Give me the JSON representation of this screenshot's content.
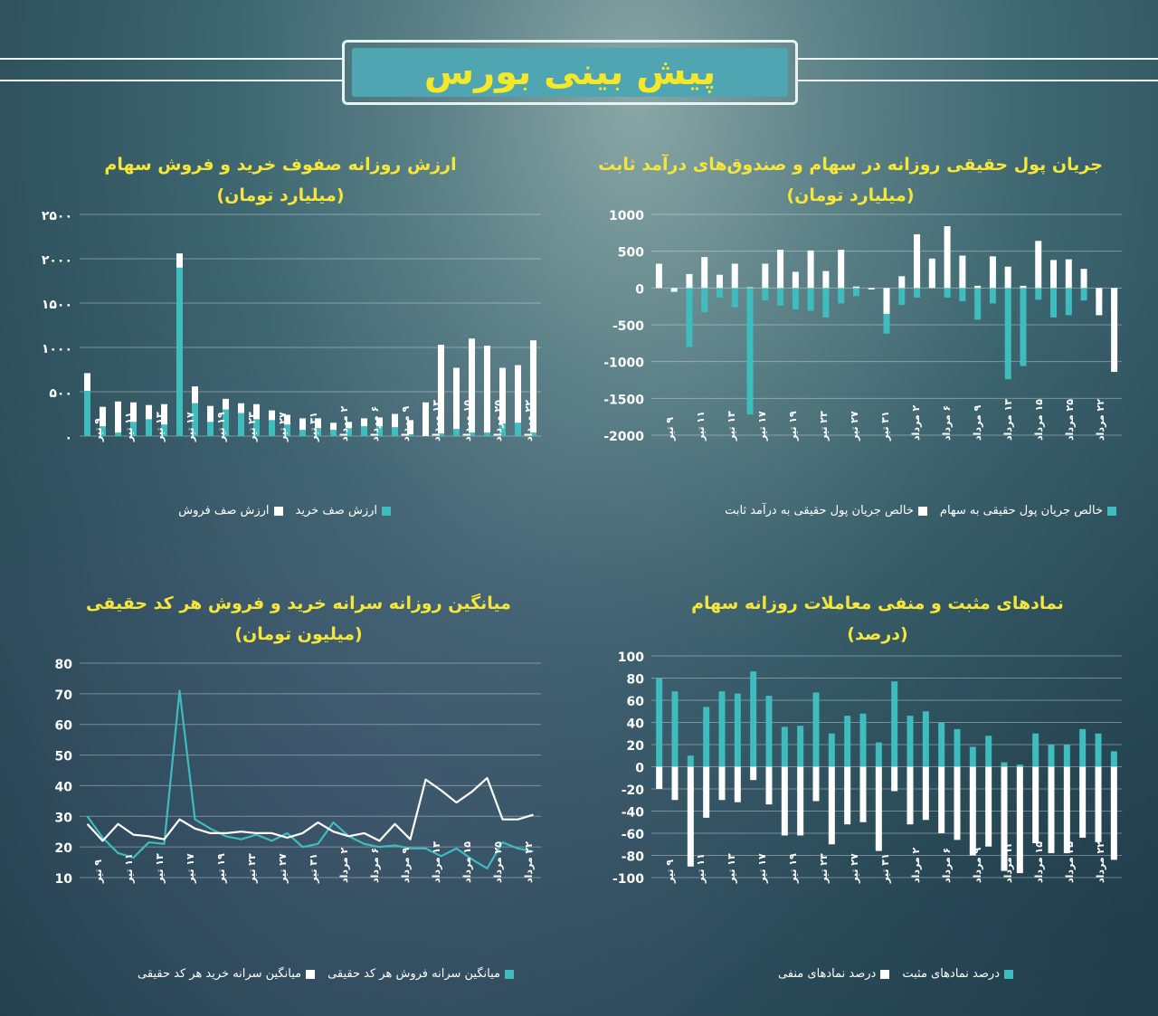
{
  "header": {
    "title": "پیش بینی بورس"
  },
  "colors": {
    "teal": "#3fbcbe",
    "white": "#ffffff",
    "yellow": "#f4e63a"
  },
  "dates": [
    "۹ تیر",
    "۱۱ تیر",
    "۱۳ تیر",
    "۱۷ تیر",
    "۱۹ تیر",
    "۲۳ تیر",
    "۲۷ تیر",
    "۳۱ تیر",
    "۲ مرداد",
    "۶ مرداد",
    "۹ مرداد",
    "۱۳ مرداد",
    "۱۵ مرداد",
    "۲۵ مرداد",
    "۲۲ مرداد"
  ],
  "chart_data": [
    {
      "id": "flow",
      "type": "bar",
      "title": "جریان پول حقیقی روزانه در سهام و صندوق‌های درآمد ثابت",
      "subtitle": "(میلیارد تومان)",
      "yticks": [
        "1000",
        "500",
        "0",
        "-500",
        "-1000",
        "-1500",
        "-2000"
      ],
      "ylim": [
        -2000,
        1000
      ],
      "series": [
        {
          "name": "خالص جریان پول حقیقی به سهام",
          "color": "#3fbcbe",
          "values": [
            110,
            -60,
            -800,
            -330,
            -130,
            -260,
            -1720,
            -170,
            -240,
            -290,
            -310,
            -400,
            -210,
            -110,
            -20,
            -620,
            -230,
            -130,
            60,
            -130,
            -180,
            -430,
            -210,
            -1240,
            -1060,
            -160,
            -400,
            -370,
            -170,
            -120,
            -330
          ]
        },
        {
          "name": "خالص جریان پول حقیقی به درآمد ثابت",
          "color": "#ffffff",
          "values": [
            330,
            -50,
            190,
            420,
            180,
            330,
            10,
            330,
            520,
            220,
            510,
            230,
            520,
            20,
            -20,
            -350,
            160,
            730,
            400,
            840,
            440,
            30,
            430,
            290,
            30,
            640,
            380,
            390,
            260,
            -370,
            -1140
          ]
        }
      ]
    },
    {
      "id": "queues",
      "type": "bar",
      "title": "ارزش روزانه صفوف خرید و فروش سهام",
      "subtitle": "(میلیارد تومان)",
      "yticks": [
        "۲۵۰۰",
        "۲۰۰۰",
        "۱۵۰۰",
        "۱۰۰۰",
        "۵۰۰",
        "۰"
      ],
      "ylim": [
        0,
        2500
      ],
      "series": [
        {
          "name": "ارزش صف خرید",
          "color": "#3fbcbe",
          "values": [
            510,
            110,
            40,
            160,
            190,
            130,
            1900,
            370,
            160,
            300,
            260,
            190,
            180,
            130,
            70,
            90,
            70,
            90,
            110,
            110,
            100,
            20,
            0,
            30,
            80,
            40,
            40,
            140,
            150,
            40
          ]
        },
        {
          "name": "ارزش صف فروش",
          "color": "#ffffff",
          "values": [
            200,
            220,
            350,
            220,
            160,
            230,
            160,
            190,
            180,
            120,
            110,
            170,
            110,
            110,
            130,
            110,
            80,
            70,
            90,
            100,
            150,
            160,
            380,
            1000,
            690,
            1060,
            980,
            630,
            650,
            1040
          ]
        }
      ]
    },
    {
      "id": "symbols",
      "type": "bar",
      "title": "نمادهای مثبت و منفی معاملات روزانه سهام",
      "subtitle": "(درصد)",
      "yticks": [
        "100",
        "80",
        "60",
        "40",
        "20",
        "0",
        "-20",
        "-40",
        "-60",
        "-80",
        "-100"
      ],
      "ylim": [
        -100,
        100
      ],
      "series": [
        {
          "name": "درصد نمادهای مثبت",
          "color": "#3fbcbe",
          "values": [
            80,
            68,
            10,
            54,
            68,
            66,
            86,
            64,
            36,
            37,
            67,
            30,
            46,
            48,
            22,
            77,
            46,
            50,
            40,
            34,
            18,
            28,
            4,
            2,
            30,
            20,
            20,
            34,
            30,
            14
          ]
        },
        {
          "name": "درصد نمادهای منفی",
          "color": "#ffffff",
          "values": [
            -20,
            -30,
            -90,
            -46,
            -30,
            -32,
            -12,
            -34,
            -62,
            -62,
            -31,
            -70,
            -52,
            -50,
            -76,
            -22,
            -52,
            -48,
            -60,
            -66,
            -80,
            -72,
            -94,
            -96,
            -69,
            -78,
            -78,
            -64,
            -68,
            -84
          ]
        }
      ]
    },
    {
      "id": "percapita",
      "type": "line",
      "title": "میانگین روزانه سرانه خرید و فروش هر کد حقیقی",
      "subtitle": "(میلیون تومان)",
      "yticks": [
        "80",
        "70",
        "60",
        "50",
        "40",
        "30",
        "20",
        "10"
      ],
      "ylim": [
        10,
        80
      ],
      "series": [
        {
          "name": "میانگین سرانه فروش هر کد حقیقی",
          "color": "#3fbcbe",
          "values": [
            30,
            23,
            18,
            16.5,
            21.5,
            21,
            71,
            29,
            26,
            23.5,
            22.5,
            24,
            22,
            24.5,
            20,
            21,
            28,
            23.5,
            21,
            20,
            20.5,
            19.5,
            19.5,
            17,
            19.5,
            16,
            13,
            21.5,
            19.5,
            18.5
          ]
        },
        {
          "name": "میانگین سرانه خرید هر کد حقیقی",
          "color": "#ffffff",
          "values": [
            27.5,
            22,
            27.5,
            24,
            23.5,
            22.5,
            29,
            26,
            24.5,
            24.5,
            25,
            24.5,
            24.5,
            23,
            24.5,
            28,
            25,
            23.5,
            24.5,
            22,
            27.5,
            22.5,
            42,
            38.5,
            34.5,
            38,
            42.5,
            29,
            29,
            30.5
          ]
        }
      ]
    }
  ]
}
